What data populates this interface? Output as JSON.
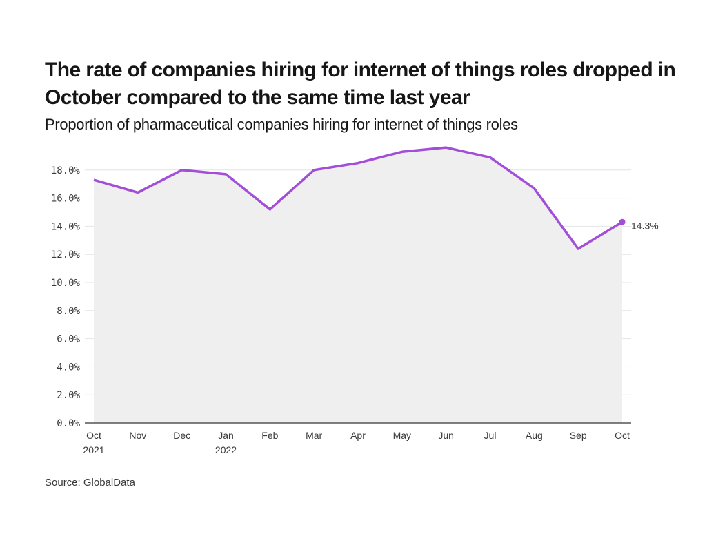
{
  "title": "The rate of companies hiring for internet of things roles dropped in October compared to the same time last year",
  "subtitle": "Proportion of pharmaceutical companies hiring for internet of things roles",
  "source": "Source: GlobalData",
  "colors": {
    "line": "#a24ed8",
    "area": "#efefef",
    "grid": "#e4e4e4",
    "axis": "#555555"
  },
  "chart_data": {
    "type": "area",
    "title": "The rate of companies hiring for internet of things roles dropped in October compared to the same time last year",
    "subtitle": "Proportion of pharmaceutical companies hiring for internet of things roles",
    "xlabel": "",
    "ylabel": "",
    "categories": [
      "Oct 2021",
      "Nov",
      "Dec",
      "Jan 2022",
      "Feb",
      "Mar",
      "Apr",
      "May",
      "Jun",
      "Jul",
      "Aug",
      "Sep",
      "Oct"
    ],
    "x_tick_labels": [
      [
        "Oct",
        "2021"
      ],
      [
        "Nov"
      ],
      [
        "Dec"
      ],
      [
        "Jan",
        "2022"
      ],
      [
        "Feb"
      ],
      [
        "Mar"
      ],
      [
        "Apr"
      ],
      [
        "May"
      ],
      [
        "Jun"
      ],
      [
        "Jul"
      ],
      [
        "Aug"
      ],
      [
        "Sep"
      ],
      [
        "Oct"
      ]
    ],
    "series": [
      {
        "name": "Proportion of pharmaceutical companies hiring for internet of things roles",
        "values": [
          17.3,
          16.4,
          18.0,
          17.7,
          15.2,
          18.0,
          18.5,
          19.3,
          19.6,
          18.9,
          16.7,
          12.4,
          14.3
        ]
      }
    ],
    "ylim": [
      0,
      18
    ],
    "y_ticks": [
      0,
      2,
      4,
      6,
      8,
      10,
      12,
      14,
      16,
      18
    ],
    "y_tick_labels": [
      "0.0%",
      "2.0%",
      "4.0%",
      "6.0%",
      "8.0%",
      "10.0%",
      "12.0%",
      "14.0%",
      "16.0%",
      "18.0%"
    ],
    "end_label": "14.3%",
    "grid": true,
    "legend": "none"
  }
}
